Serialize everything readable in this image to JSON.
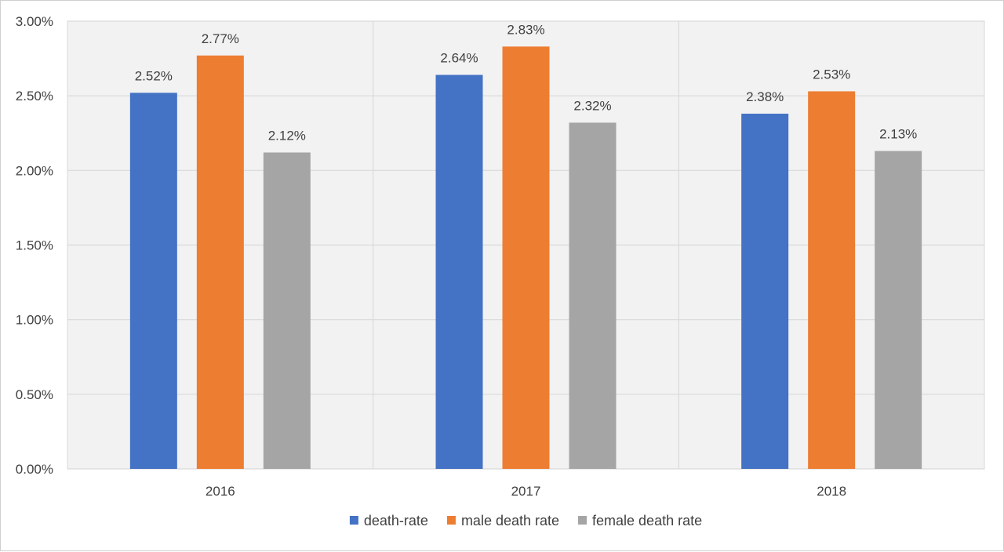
{
  "chart_data": {
    "type": "bar",
    "categories": [
      "2016",
      "2017",
      "2018"
    ],
    "series": [
      {
        "name": "death-rate",
        "values": [
          2.52,
          2.64,
          2.38
        ],
        "labels": [
          "2.52%",
          "2.64%",
          "2.38%"
        ],
        "color": "#4472C4"
      },
      {
        "name": "male death rate",
        "values": [
          2.77,
          2.83,
          2.53
        ],
        "labels": [
          "2.77%",
          "2.83%",
          "2.53%"
        ],
        "color": "#ED7D31"
      },
      {
        "name": "female death rate",
        "values": [
          2.12,
          2.32,
          2.13
        ],
        "labels": [
          "2.12%",
          "2.32%",
          "2.13%"
        ],
        "color": "#A5A5A5"
      }
    ],
    "ylim": [
      0,
      3
    ],
    "yticks": [
      0,
      0.5,
      1,
      1.5,
      2,
      2.5,
      3
    ],
    "ytick_labels": [
      "0.00%",
      "0.50%",
      "1.00%",
      "1.50%",
      "2.00%",
      "2.50%",
      "3.00%"
    ],
    "grid": true,
    "legend_position": "bottom-center",
    "plot_background": "#F2F2F2",
    "gridline_color": "#D9D9D9"
  }
}
